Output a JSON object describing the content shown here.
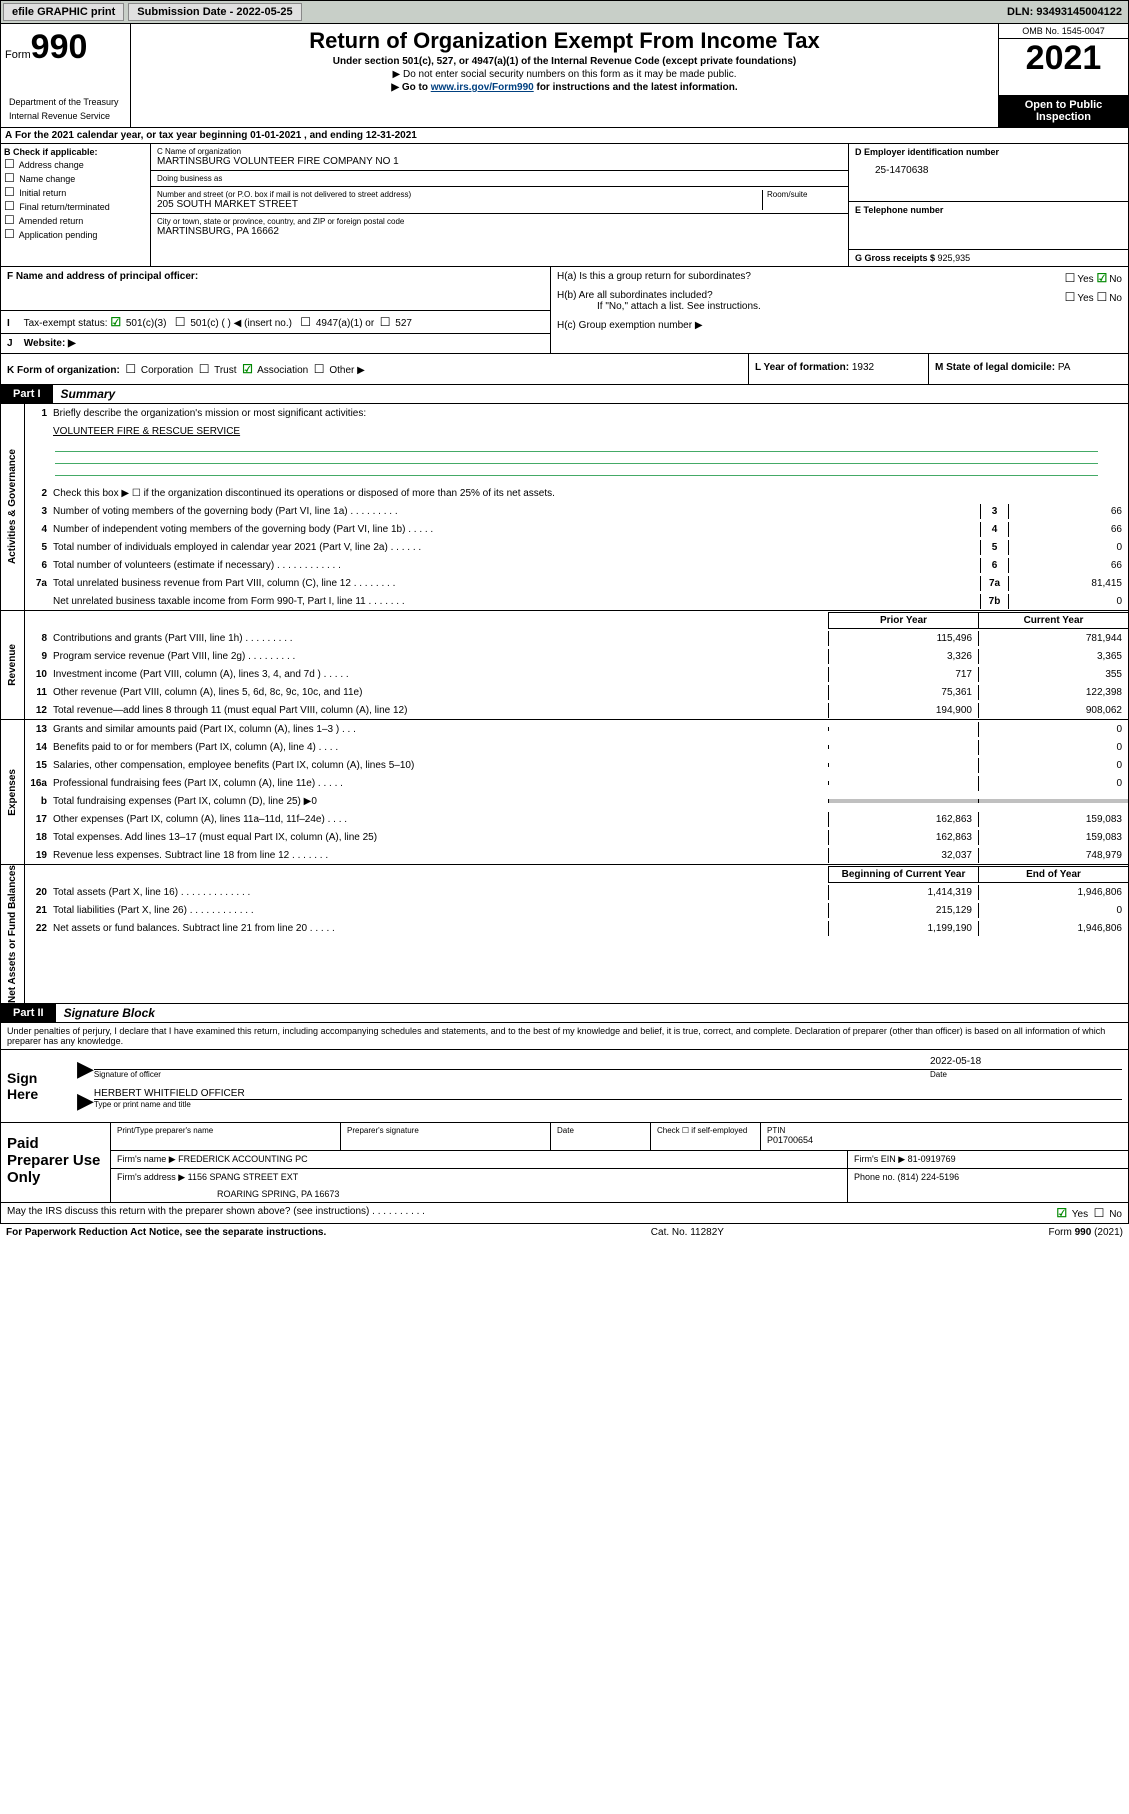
{
  "topbar": {
    "efile": "efile GRAPHIC print",
    "subdate_lbl": "Submission Date - ",
    "subdate": "2022-05-25",
    "dln_lbl": "DLN: ",
    "dln": "93493145004122"
  },
  "header": {
    "form_word": "Form",
    "form_num": "990",
    "dept": "Department of the Treasury",
    "irs": "Internal Revenue Service",
    "title": "Return of Organization Exempt From Income Tax",
    "sub": "Under section 501(c), 527, or 4947(a)(1) of the Internal Revenue Code (except private foundations)",
    "note": "▶ Do not enter social security numbers on this form as it may be made public.",
    "link_pre": "▶ Go to ",
    "link": "www.irs.gov/Form990",
    "link_post": " for instructions and the latest information.",
    "omb": "OMB No. 1545-0047",
    "year": "2021",
    "open": "Open to Public Inspection"
  },
  "A": {
    "text": "For the 2021 calendar year, or tax year beginning 01-01-2021    , and ending 12-31-2021",
    "prefix": "A"
  },
  "B": {
    "lbl": "B Check if applicable:",
    "opts": [
      "Address change",
      "Name change",
      "Initial return",
      "Final return/terminated",
      "Amended return",
      "Application pending"
    ]
  },
  "C": {
    "name_lbl": "C Name of organization",
    "name": "MARTINSBURG VOLUNTEER FIRE COMPANY NO 1",
    "dba_lbl": "Doing business as",
    "dba": "",
    "addr_lbl": "Number and street (or P.O. box if mail is not delivered to street address)",
    "addr": "205 SOUTH MARKET STREET",
    "room_lbl": "Room/suite",
    "city_lbl": "City or town, state or province, country, and ZIP or foreign postal code",
    "city": "MARTINSBURG, PA   16662"
  },
  "D": {
    "lbl": "D Employer identification number",
    "val": "25-1470638"
  },
  "E": {
    "lbl": "E Telephone number",
    "val": ""
  },
  "G": {
    "lbl": "G Gross receipts $ ",
    "val": "925,935"
  },
  "F": {
    "lbl": "F  Name and address of principal officer:",
    "val": ""
  },
  "H": {
    "a": "H(a)  Is this a group return for subordinates?",
    "b": "H(b)  Are all subordinates included?",
    "note": "If \"No,\" attach a list. See instructions.",
    "c": "H(c)  Group exemption number ▶",
    "yes": "Yes",
    "no": "No"
  },
  "I": {
    "lbl": "Tax-exempt status:",
    "opts": [
      "501(c)(3)",
      "501(c) (  ) ◀ (insert no.)",
      "4947(a)(1) or",
      "527"
    ],
    "prefix": "I"
  },
  "J": {
    "lbl": "Website: ▶",
    "prefix": "J"
  },
  "K": {
    "lbl": "K Form of organization:",
    "opts": [
      "Corporation",
      "Trust",
      "Association",
      "Other ▶"
    ],
    "checked_idx": 2
  },
  "L": {
    "lbl": "L Year of formation: ",
    "val": "1932"
  },
  "M": {
    "lbl": "M State of legal domicile: ",
    "val": "PA"
  },
  "part1": {
    "tab": "Part I",
    "txt": "Summary"
  },
  "mission": {
    "q": "Briefly describe the organization's mission or most significant activities:",
    "a": "VOLUNTEER FIRE & RESCUE SERVICE"
  },
  "line2": "Check this box ▶ ☐  if the organization discontinued its operations or disposed of more than 25% of its net assets.",
  "gov": [
    {
      "n": "3",
      "d": "Number of voting members of the governing body (Part VI, line 1a)   .     .     .     .     .     .     .     .     .",
      "b": "3",
      "v": "66"
    },
    {
      "n": "4",
      "d": "Number of independent voting members of the governing body (Part VI, line 1b)   .     .     .     .     .",
      "b": "4",
      "v": "66"
    },
    {
      "n": "5",
      "d": "Total number of individuals employed in calendar year 2021 (Part V, line 2a)   .     .     .     .     .     .",
      "b": "5",
      "v": "0"
    },
    {
      "n": "6",
      "d": "Total number of volunteers (estimate if necessary)   .     .     .     .     .     .     .     .     .     .     .     .",
      "b": "6",
      "v": "66"
    },
    {
      "n": "7a",
      "d": "Total unrelated business revenue from Part VIII, column (C), line 12   .     .     .     .     .     .     .     .",
      "b": "7a",
      "v": "81,415"
    },
    {
      "n": "",
      "d": "Net unrelated business taxable income from Form 990-T, Part I, line 11   .     .     .     .     .     .     .",
      "b": "7b",
      "v": "0"
    }
  ],
  "hdr": {
    "p": "Prior Year",
    "c": "Current Year"
  },
  "revenue": [
    {
      "n": "8",
      "d": "Contributions and grants (Part VIII, line 1h)   .     .     .     .     .     .     .     .     .",
      "p": "115,496",
      "c": "781,944"
    },
    {
      "n": "9",
      "d": "Program service revenue (Part VIII, line 2g)   .     .     .     .     .     .     .     .     .",
      "p": "3,326",
      "c": "3,365"
    },
    {
      "n": "10",
      "d": "Investment income (Part VIII, column (A), lines 3, 4, and 7d )   .     .     .     .     .",
      "p": "717",
      "c": "355"
    },
    {
      "n": "11",
      "d": "Other revenue (Part VIII, column (A), lines 5, 6d, 8c, 9c, 10c, and 11e)",
      "p": "75,361",
      "c": "122,398"
    },
    {
      "n": "12",
      "d": "Total revenue—add lines 8 through 11 (must equal Part VIII, column (A), line 12)",
      "p": "194,900",
      "c": "908,062"
    }
  ],
  "expenses": [
    {
      "n": "13",
      "d": "Grants and similar amounts paid (Part IX, column (A), lines 1–3 )   .     .     .",
      "p": "",
      "c": "0"
    },
    {
      "n": "14",
      "d": "Benefits paid to or for members (Part IX, column (A), line 4)   .     .     .     .",
      "p": "",
      "c": "0"
    },
    {
      "n": "15",
      "d": "Salaries, other compensation, employee benefits (Part IX, column (A), lines 5–10)",
      "p": "",
      "c": "0"
    },
    {
      "n": "16a",
      "d": "Professional fundraising fees (Part IX, column (A), line 11e)   .     .     .     .     .",
      "p": "",
      "c": "0"
    },
    {
      "n": "b",
      "d": "Total fundraising expenses (Part IX, column (D), line 25) ▶0",
      "p": "GRAY",
      "c": "GRAY"
    },
    {
      "n": "17",
      "d": "Other expenses (Part IX, column (A), lines 11a–11d, 11f–24e)   .     .     .     .",
      "p": "162,863",
      "c": "159,083"
    },
    {
      "n": "18",
      "d": "Total expenses. Add lines 13–17 (must equal Part IX, column (A), line 25)",
      "p": "162,863",
      "c": "159,083"
    },
    {
      "n": "19",
      "d": "Revenue less expenses. Subtract line 18 from line 12   .     .     .     .     .     .     .",
      "p": "32,037",
      "c": "748,979"
    }
  ],
  "hdr2": {
    "p": "Beginning of Current Year",
    "c": "End of Year"
  },
  "netassets": [
    {
      "n": "20",
      "d": "Total assets (Part X, line 16)   .     .     .     .     .     .     .     .     .     .     .     .     .",
      "p": "1,414,319",
      "c": "1,946,806"
    },
    {
      "n": "21",
      "d": "Total liabilities (Part X, line 26)   .     .     .     .     .     .     .     .     .     .     .     .",
      "p": "215,129",
      "c": "0"
    },
    {
      "n": "22",
      "d": "Net assets or fund balances. Subtract line 21 from line 20   .     .     .     .     .",
      "p": "1,199,190",
      "c": "1,946,806"
    }
  ],
  "sidelabels": {
    "gov": "Activities & Governance",
    "rev": "Revenue",
    "exp": "Expenses",
    "net": "Net Assets or Fund Balances"
  },
  "part2": {
    "tab": "Part II",
    "txt": "Signature Block"
  },
  "declare": "Under penalties of perjury, I declare that I have examined this return, including accompanying schedules and statements, and to the best of my knowledge and belief, it is true, correct, and complete. Declaration of preparer (other than officer) is based on all information of which preparer has any knowledge.",
  "sign": {
    "lbl": "Sign Here",
    "sig_lbl": "Signature of officer",
    "date_lbl": "Date",
    "date": "2022-05-18",
    "name": "HERBERT WHITFIELD OFFICER",
    "name_lbl": "Type or print name and title"
  },
  "paid": {
    "lbl": "Paid Preparer Use Only",
    "h1": "Print/Type preparer's name",
    "h2": "Preparer's signature",
    "h3": "Date",
    "h4_lbl": "Check ☐ if self-employed",
    "h5_lbl": "PTIN",
    "h5": "P01700654",
    "firm_lbl": "Firm's name     ▶ ",
    "firm": "FREDERICK ACCOUNTING PC",
    "ein_lbl": "Firm's EIN ▶ ",
    "ein": "81-0919769",
    "addr_lbl": "Firm's address ▶ ",
    "addr1": "1156 SPANG STREET EXT",
    "addr2": "ROARING SPRING, PA  16673",
    "phone_lbl": "Phone no. ",
    "phone": "(814) 224-5196"
  },
  "discuss": {
    "q": "May the IRS discuss this return with the preparer shown above? (see instructions)   .     .     .     .     .     .     .     .     .     .",
    "yes": "Yes",
    "no": "No"
  },
  "footer": {
    "l": "For Paperwork Reduction Act Notice, see the separate instructions.",
    "c": "Cat. No. 11282Y",
    "r_pre": "Form ",
    "r_b": "990",
    "r_post": " (2021)"
  }
}
